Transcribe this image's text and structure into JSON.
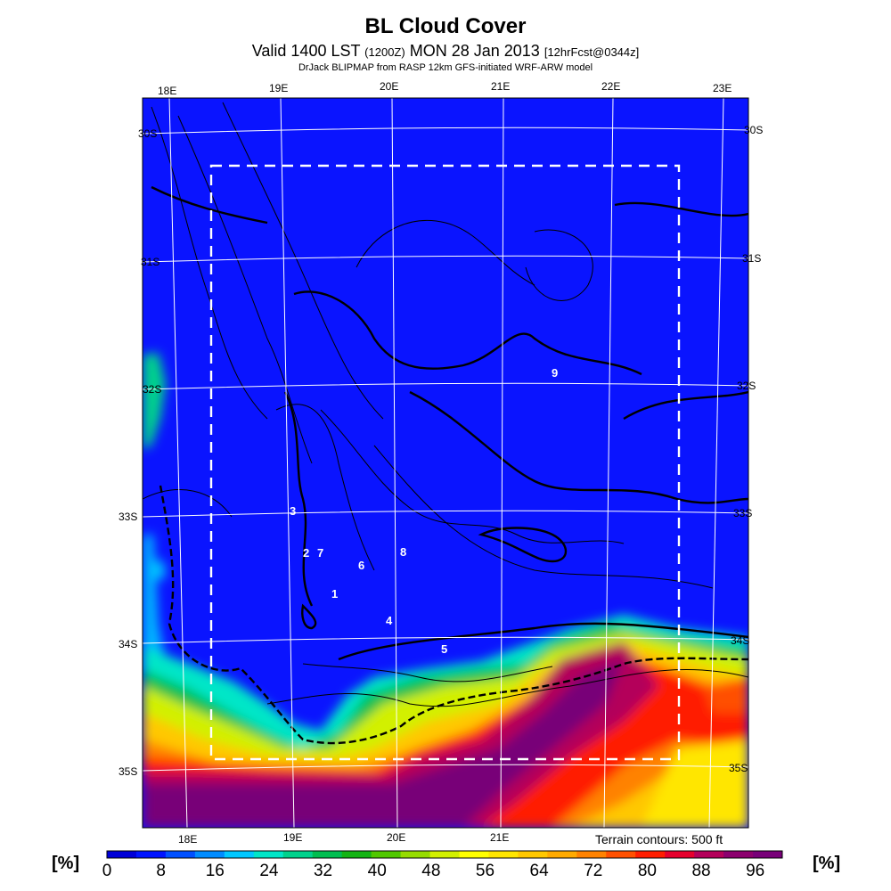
{
  "header": {
    "title": "BL Cloud Cover",
    "valid": "Valid 1400 LST",
    "zone": "(1200Z)",
    "date": "MON 28 Jan 2013",
    "fcst": "[12hrFcst@0344z]",
    "model": "DrJack BLIPMAP from RASP 12km GFS-initiated WRF-ARW model"
  },
  "map": {
    "lon_labels_top": [
      "18E",
      "19E",
      "20E",
      "21E",
      "22E",
      "23E"
    ],
    "lon_labels_bottom": [
      "18E",
      "19E",
      "20E",
      "21E"
    ],
    "lat_labels_left": [
      "30S",
      "31S",
      "32S",
      "33S",
      "34S",
      "35S"
    ],
    "lat_labels_right": [
      "30S",
      "31S",
      "32S",
      "33S",
      "34S",
      "35S"
    ],
    "site_markers": [
      "1",
      "2",
      "3",
      "4",
      "5",
      "6",
      "7",
      "8",
      "9"
    ],
    "colors": {
      "ocean_blue": "#0a14ff",
      "grid": "#ffffff",
      "contour": "#000000"
    }
  },
  "footer": {
    "terrain_note": "Terrain contours: 500 ft",
    "unit_left": "[%]",
    "unit_right": "[%]"
  },
  "colorbar": {
    "tick_labels": [
      "0",
      "8",
      "16",
      "24",
      "32",
      "40",
      "48",
      "56",
      "64",
      "72",
      "80",
      "88",
      "96"
    ],
    "colors": [
      "#0000d8",
      "#0014ff",
      "#0050ff",
      "#008cff",
      "#00c8ff",
      "#00e6c8",
      "#00d28c",
      "#00be50",
      "#14b414",
      "#50c800",
      "#96dc00",
      "#d2f000",
      "#ffff00",
      "#ffe600",
      "#ffc800",
      "#ffaa00",
      "#ff8200",
      "#ff5000",
      "#ff1e00",
      "#e6002d",
      "#b4005a",
      "#8c006e",
      "#780078"
    ]
  }
}
